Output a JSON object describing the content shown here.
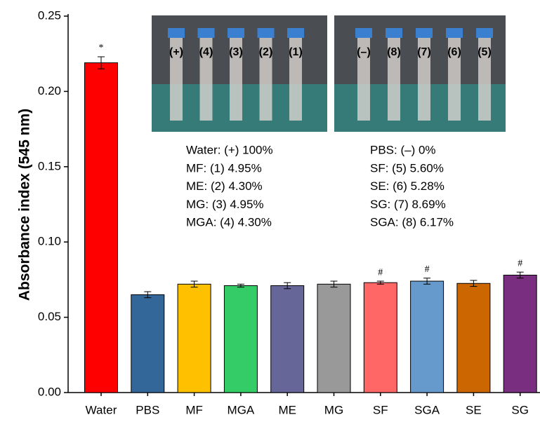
{
  "chart_data": {
    "type": "bar",
    "y_label": "Absorbance index (545 nm)",
    "categories": [
      "Water",
      "PBS",
      "MF",
      "MGA",
      "ME",
      "MG",
      "SF",
      "SGA",
      "SE",
      "SG"
    ],
    "values": [
      0.219,
      0.065,
      0.072,
      0.071,
      0.071,
      0.072,
      0.073,
      0.074,
      0.0725,
      0.078
    ],
    "errors": [
      0.004,
      0.002,
      0.002,
      0.001,
      0.002,
      0.002,
      0.001,
      0.002,
      0.002,
      0.002
    ],
    "colors": [
      "#ff0000",
      "#336699",
      "#ffc000",
      "#33cc66",
      "#666699",
      "#999999",
      "#ff6666",
      "#6699cc",
      "#cc6600",
      "#7a2e80"
    ],
    "marker_labels": [
      "*",
      null,
      null,
      null,
      null,
      null,
      "#",
      "#",
      null,
      "#"
    ],
    "ylim": [
      0,
      0.25
    ],
    "yticks": [
      {
        "value": 0,
        "label": "0.00"
      },
      {
        "value": 0.05,
        "label": "0.05"
      },
      {
        "value": 0.1,
        "label": "0.10"
      },
      {
        "value": 0.15,
        "label": "0.15"
      },
      {
        "value": 0.2,
        "label": "0.20"
      },
      {
        "value": 0.25,
        "label": "0.25"
      }
    ],
    "photo_labels_left": [
      "(+)",
      "(4)",
      "(3)",
      "(2)",
      "(1)"
    ],
    "photo_labels_right": [
      "(–)",
      "(8)",
      "(7)",
      "(6)",
      "(5)"
    ],
    "notes_left": [
      "Water: (+) 100%",
      "MF: (1) 4.95%",
      "ME: (2) 4.30%",
      "MG: (3) 4.95%",
      "MGA: (4) 4.30%"
    ],
    "notes_right": [
      "PBS: (–) 0%",
      "SF: (5) 5.60%",
      "SE: (6) 5.28%",
      "SG: (7) 8.69%",
      "SGA: (8) 6.17%"
    ]
  }
}
